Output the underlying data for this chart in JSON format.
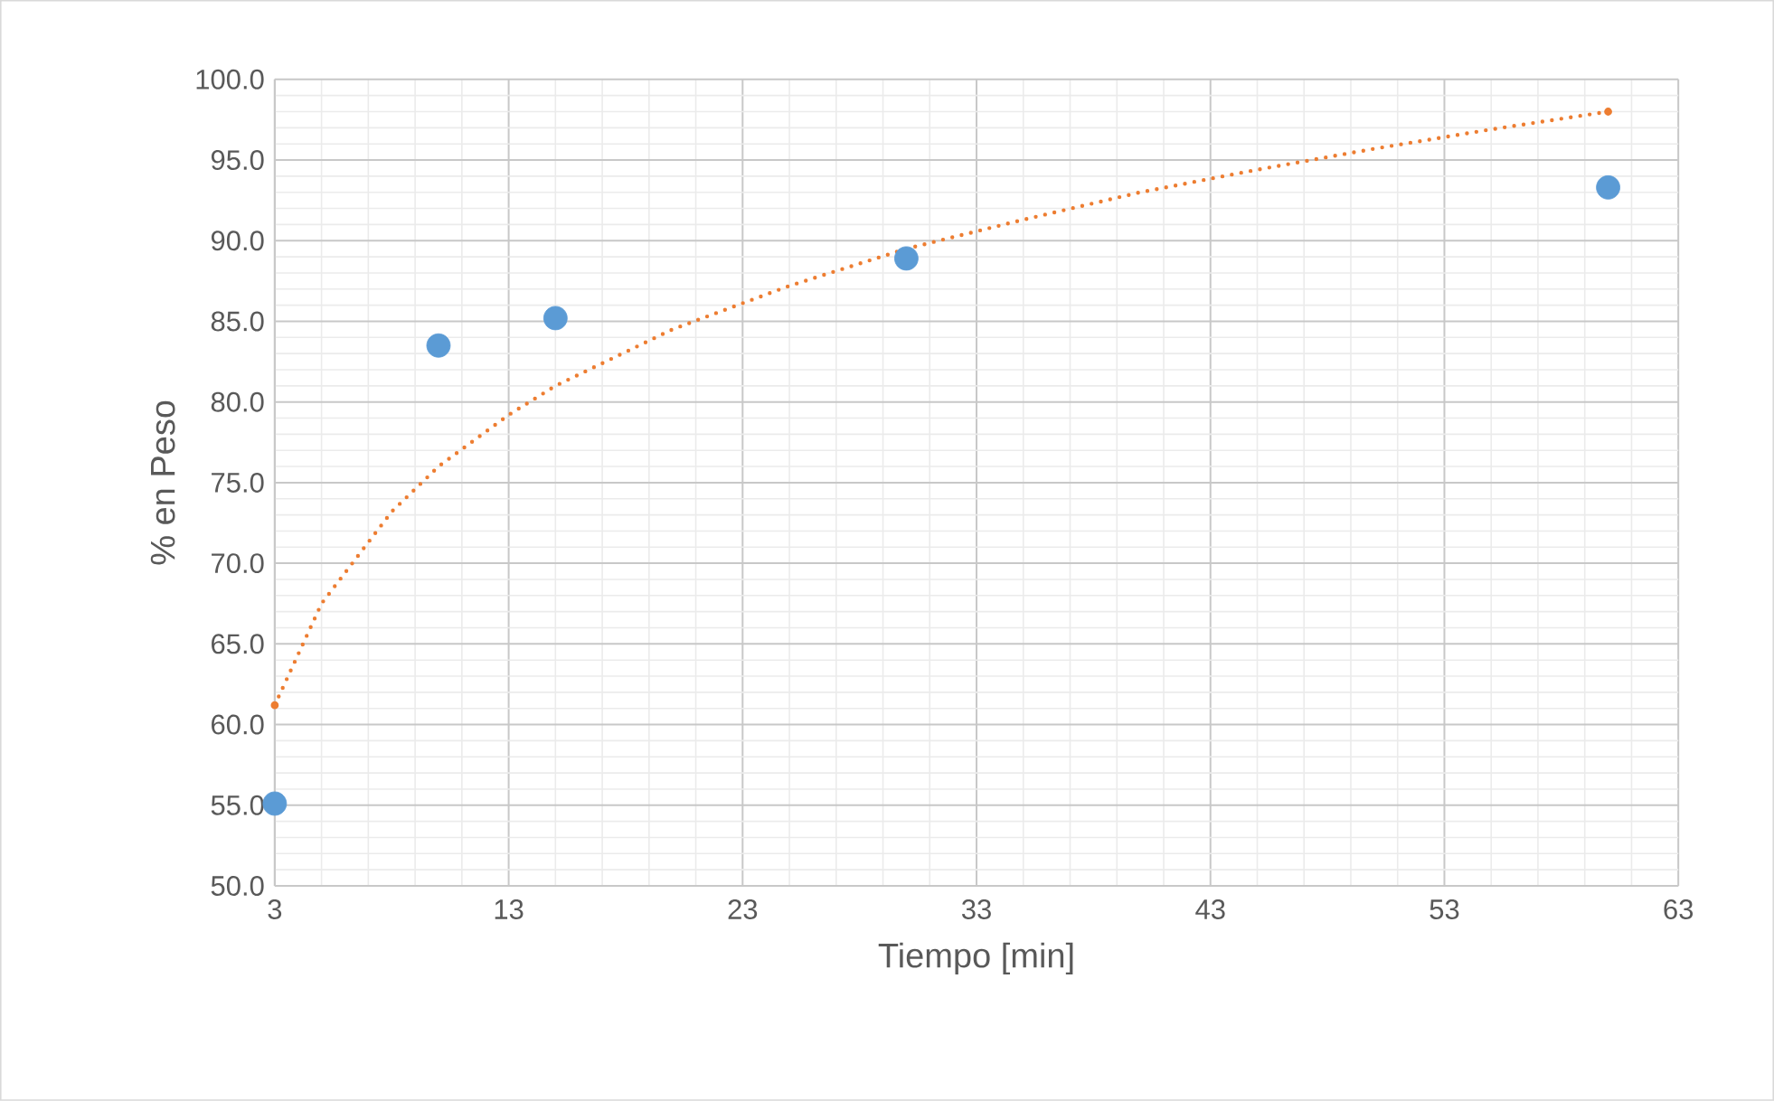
{
  "chart_data": {
    "type": "scatter",
    "xlabel": "Tiempo [min]",
    "ylabel": "% en Peso",
    "xlim": [
      3,
      63
    ],
    "xticks": [
      3,
      13,
      23,
      33,
      43,
      53,
      63
    ],
    "ylim": [
      50,
      100
    ],
    "yticks": [
      {
        "value": 50,
        "label": "50.0"
      },
      {
        "value": 55,
        "label": "55.0"
      },
      {
        "value": 60,
        "label": "60.0"
      },
      {
        "value": 65,
        "label": "65.0"
      },
      {
        "value": 70,
        "label": "70.0"
      },
      {
        "value": 75,
        "label": "75.0"
      },
      {
        "value": 80,
        "label": "80.0"
      },
      {
        "value": 85,
        "label": "85.0"
      },
      {
        "value": 90,
        "label": "90.0"
      },
      {
        "value": 95,
        "label": "95.0"
      },
      {
        "value": 100,
        "label": "100.0"
      }
    ],
    "grid": true,
    "series": [
      {
        "color": "#5b9bd5",
        "marker": "circle",
        "x": [
          3,
          10,
          15,
          30,
          60
        ],
        "values": [
          55.1,
          83.5,
          85.2,
          88.9,
          93.3
        ]
      },
      {
        "type": "line",
        "color": "#ed7d31",
        "marker": "none",
        "line_style": "dotted",
        "x": [
          3,
          5,
          8,
          10,
          13,
          15,
          20,
          25,
          30,
          35,
          40,
          45,
          50,
          55,
          60
        ],
        "values": [
          61.2,
          67.5,
          73.2,
          76.0,
          79.2,
          81.0,
          84.5,
          87.2,
          89.5,
          91.3,
          93.0,
          94.4,
          95.7,
          96.9,
          98.0
        ]
      }
    ]
  }
}
